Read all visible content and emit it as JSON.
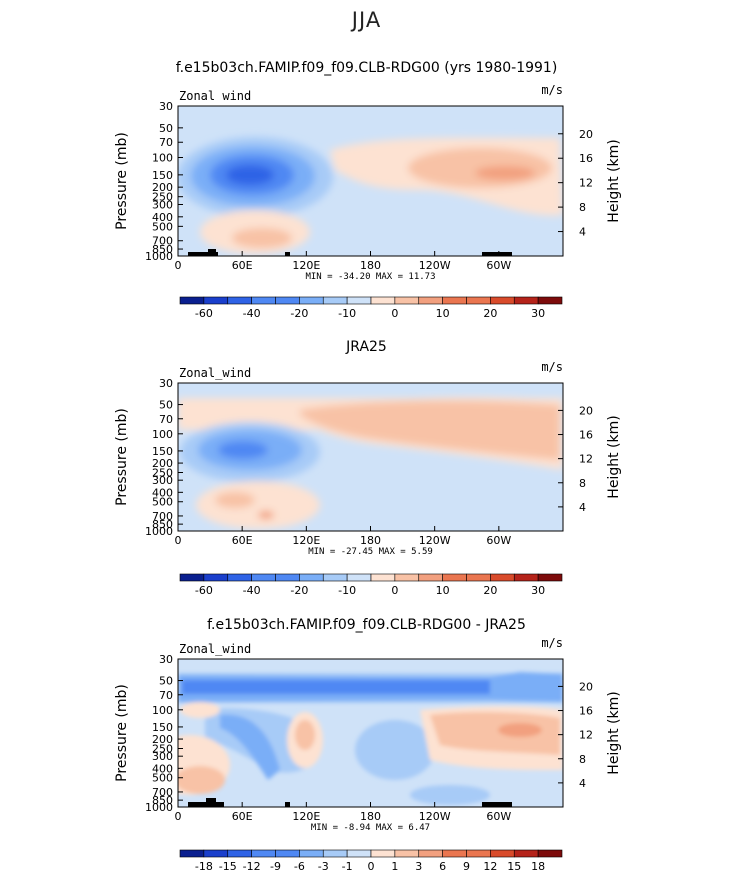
{
  "page_title": "JJA",
  "palette": [
    "#0a1f8f",
    "#1a3fcc",
    "#2f63e6",
    "#4f88f3",
    "#7aaef7",
    "#a7cbf7",
    "#cfe2f8",
    "#fde2d2",
    "#f8c2a6",
    "#f2a07f",
    "#ea7650",
    "#d94b2b",
    "#b5231a",
    "#7d0b0b"
  ],
  "chart_data": [
    {
      "type": "heatmap",
      "title": "f.e15b03ch.FAMIP.f09_f09.CLB-RDG00 (yrs 1980-1991)",
      "left_label": "Zonal wind",
      "units": "m/s",
      "ylabel": "Pressure (mb)",
      "ylabel_right": "Height (km)",
      "x_ticks": [
        "0",
        "60E",
        "120E",
        "180",
        "120W",
        "60W"
      ],
      "y_ticks": [
        "30",
        "50",
        "70",
        "100",
        "150",
        "200",
        "250",
        "300",
        "400",
        "500",
        "700",
        "850",
        "1000"
      ],
      "y_ticks_right": [
        "20",
        "16",
        "12",
        "8",
        "4"
      ],
      "stats": "MIN = -34.20   MAX = 11.73",
      "colorbar_labels": [
        "-60",
        "-40",
        "-20",
        "-10",
        "0",
        "10",
        "20",
        "30"
      ],
      "colorbar_label_at": [
        1,
        3,
        5,
        7,
        9,
        11,
        13,
        15
      ],
      "colorbar_boxes": 16
    },
    {
      "type": "heatmap",
      "title": "JRA25",
      "left_label": "Zonal_wind",
      "units": "m/s",
      "ylabel": "Pressure (mb)",
      "ylabel_right": "Height (km)",
      "x_ticks": [
        "0",
        "60E",
        "120E",
        "180",
        "120W",
        "60W"
      ],
      "y_ticks": [
        "30",
        "50",
        "70",
        "100",
        "150",
        "200",
        "250",
        "300",
        "400",
        "500",
        "700",
        "850",
        "1000"
      ],
      "y_ticks_right": [
        "20",
        "16",
        "12",
        "8",
        "4"
      ],
      "stats": "MIN = -27.45   MAX =   5.59",
      "colorbar_labels": [
        "-60",
        "-40",
        "-20",
        "-10",
        "0",
        "10",
        "20",
        "30"
      ],
      "colorbar_label_at": [
        1,
        3,
        5,
        7,
        9,
        11,
        13,
        15
      ],
      "colorbar_boxes": 16
    },
    {
      "type": "heatmap",
      "title": "f.e15b03ch.FAMIP.f09_f09.CLB-RDG00 - JRA25",
      "left_label": "Zonal_wind",
      "units": "m/s",
      "ylabel": "Pressure (mb)",
      "ylabel_right": "Height (km)",
      "x_ticks": [
        "0",
        "60E",
        "120E",
        "180",
        "120W",
        "60W"
      ],
      "y_ticks": [
        "30",
        "50",
        "70",
        "100",
        "150",
        "200",
        "250",
        "300",
        "400",
        "500",
        "700",
        "850",
        "1000"
      ],
      "y_ticks_right": [
        "20",
        "16",
        "12",
        "8",
        "4"
      ],
      "stats": "MIN = -8.94   MAX =   6.47",
      "colorbar_labels": [
        "-18",
        "-15",
        "-12",
        "-9",
        "-6",
        "-3",
        "-1",
        "0",
        "1",
        "3",
        "6",
        "9",
        "12",
        "15",
        "18"
      ],
      "colorbar_label_at": [
        1,
        2,
        3,
        4,
        5,
        6,
        7,
        8,
        9,
        10,
        11,
        12,
        13,
        14,
        15
      ],
      "colorbar_boxes": 16
    }
  ]
}
